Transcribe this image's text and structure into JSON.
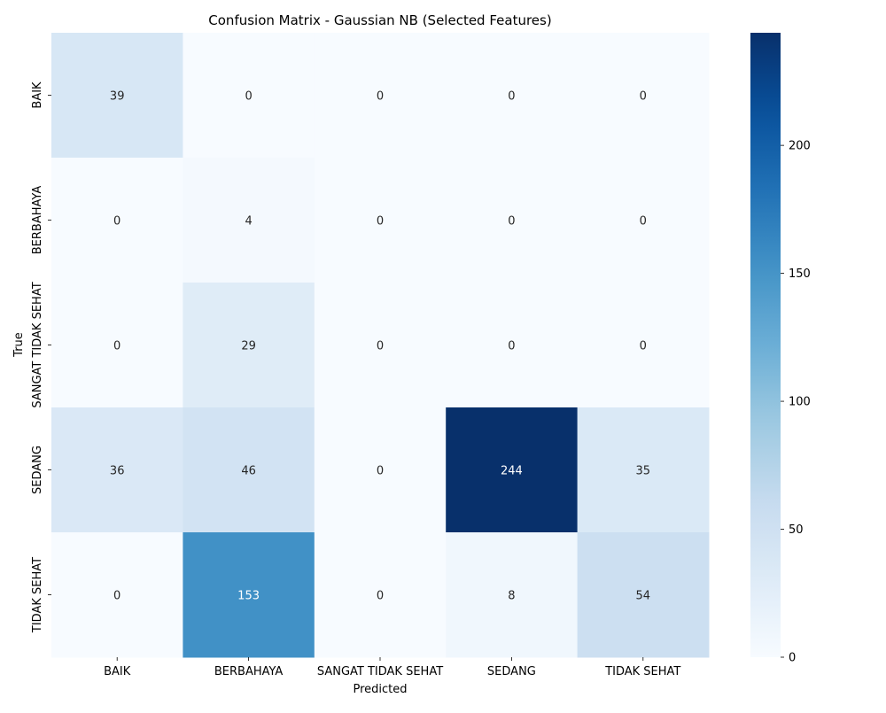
{
  "chart_data": {
    "type": "heatmap",
    "title": "Confusion Matrix - Gaussian NB (Selected Features)",
    "xlabel": "Predicted",
    "ylabel": "True",
    "x_categories": [
      "BAIK",
      "BERBAHAYA",
      "SANGAT TIDAK SEHAT",
      "SEDANG",
      "TIDAK SEHAT"
    ],
    "y_categories": [
      "BAIK",
      "BERBAHAYA",
      "SANGAT TIDAK SEHAT",
      "SEDANG",
      "TIDAK SEHAT"
    ],
    "values": [
      [
        39,
        0,
        0,
        0,
        0
      ],
      [
        0,
        4,
        0,
        0,
        0
      ],
      [
        0,
        29,
        0,
        0,
        0
      ],
      [
        36,
        46,
        0,
        244,
        35
      ],
      [
        0,
        153,
        0,
        8,
        54
      ]
    ],
    "colorscale": "Blues",
    "vmin": 0,
    "vmax": 244,
    "colorbar_ticks": [
      0,
      50,
      100,
      150,
      200
    ]
  }
}
